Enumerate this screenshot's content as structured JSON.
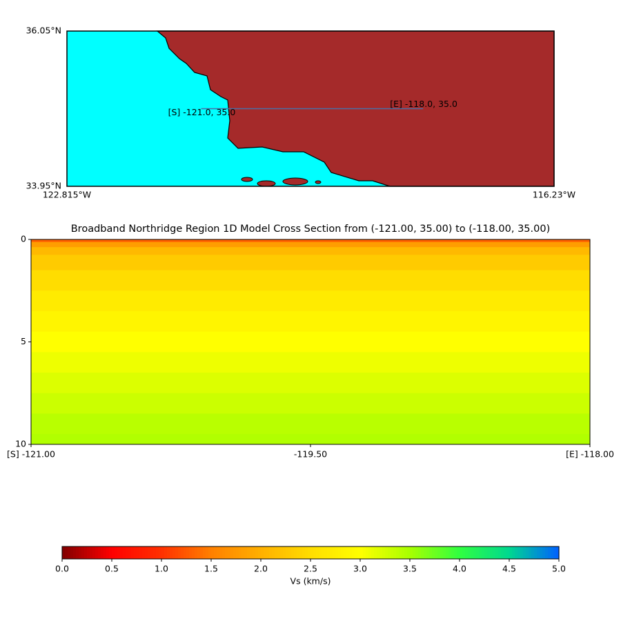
{
  "chart_data": [
    {
      "type": "map",
      "xlim": [
        -122.815,
        -116.23
      ],
      "ylim": [
        33.95,
        36.05
      ],
      "xticks": [
        {
          "value": -122.815,
          "label": "122.815°W"
        },
        {
          "value": -116.23,
          "label": "116.23°W"
        }
      ],
      "yticks": [
        {
          "value": 33.95,
          "label": "33.95°N"
        },
        {
          "value": 36.05,
          "label": "36.05°N"
        }
      ],
      "water_color": "#00ffff",
      "land_color": "#a52a2a",
      "line_color": "#4a6fa5",
      "line": {
        "x": [
          -121.0,
          -118.0
        ],
        "y": [
          35.0,
          35.0
        ]
      },
      "annotations": [
        {
          "text": "[S] -121.0, 35.0",
          "x": -121.0,
          "y": 35.0
        },
        {
          "text": "[E] -118.0, 35.0",
          "x": -118.0,
          "y": 35.0
        }
      ]
    },
    {
      "type": "heatmap",
      "title": "Broadband Northridge Region 1D Model Cross Section from (-121.00, 35.00) to (-118.00, 35.00)",
      "xlim": [
        -121.0,
        -118.0
      ],
      "ylim": [
        10,
        0
      ],
      "xticks": [
        {
          "value": -121.0,
          "label": "[S] -121.00"
        },
        {
          "value": -119.5,
          "label": "-119.50"
        },
        {
          "value": -118.0,
          "label": "[E] -118.00"
        }
      ],
      "yticks": [
        0,
        5,
        10
      ],
      "depths": [
        0,
        0.25,
        0.5,
        1,
        2,
        3,
        4,
        5,
        6,
        7,
        8,
        9,
        10
      ],
      "values": [
        1.3,
        1.8,
        2.1,
        2.3,
        2.5,
        2.7,
        2.85,
        3.0,
        3.1,
        3.2,
        3.3,
        3.4,
        3.45
      ]
    },
    {
      "type": "colorbar",
      "label": "Vs (km/s)",
      "xlim": [
        0.0,
        5.0
      ],
      "xticks": [
        {
          "value": 0,
          "label": "0.0"
        },
        {
          "value": 0.5,
          "label": "0.5"
        },
        {
          "value": 1,
          "label": "1.0"
        },
        {
          "value": 1.5,
          "label": "1.5"
        },
        {
          "value": 2,
          "label": "2.0"
        },
        {
          "value": 2.5,
          "label": "2.5"
        },
        {
          "value": 3,
          "label": "3.0"
        },
        {
          "value": 3.5,
          "label": "3.5"
        },
        {
          "value": 4,
          "label": "4.0"
        },
        {
          "value": 4.5,
          "label": "4.5"
        },
        {
          "value": 5,
          "label": "5.0"
        }
      ],
      "colors": [
        "#800000",
        "#ff0000",
        "#ff3000",
        "#ff8000",
        "#ffb000",
        "#ffdd00",
        "#ffff00",
        "#a8ff00",
        "#30ff40",
        "#00d890",
        "#0060ff"
      ]
    }
  ]
}
